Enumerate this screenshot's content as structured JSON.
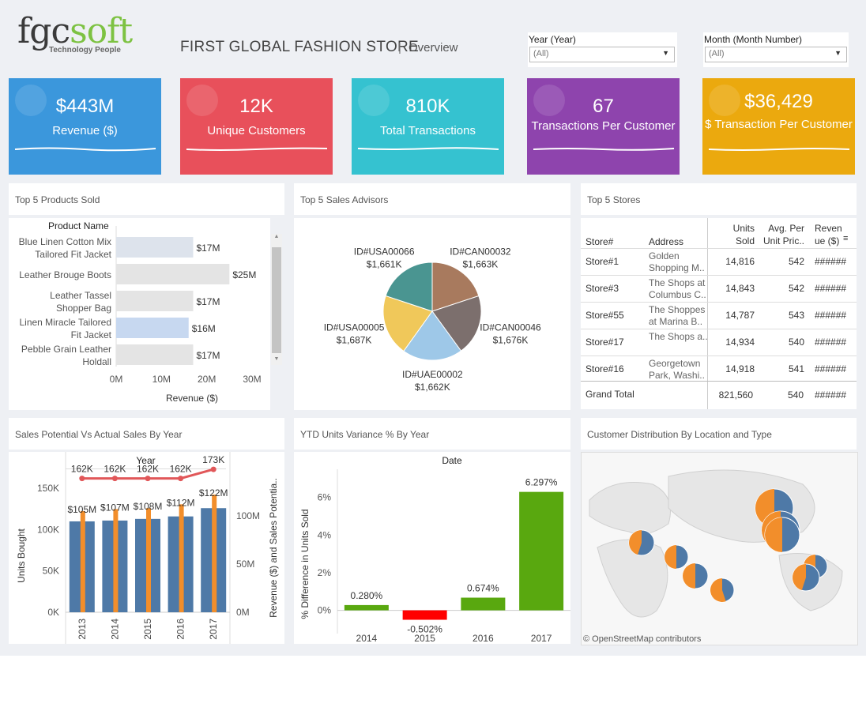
{
  "brand": {
    "name_a": "fgc",
    "name_b": "soft",
    "tagline": "Technology People"
  },
  "header": {
    "title": "FIRST GLOBAL FASHION STORE",
    "separator": "|",
    "subtitle": "Overview"
  },
  "filters": {
    "year": {
      "label": "Year (Year)",
      "value": "(All)"
    },
    "month": {
      "label": "Month (Month Number)",
      "value": "(All)"
    }
  },
  "kpis": [
    {
      "value": "$443M",
      "label": "Revenue ($)",
      "color": "#3b97dc"
    },
    {
      "value": "12K",
      "label": "Unique Customers",
      "color": "#e8505b"
    },
    {
      "value": "810K",
      "label": "Total Transactions",
      "color": "#35c2d0"
    },
    {
      "value": "67",
      "label": "Transactions Per Customer",
      "color": "#8e44ad"
    },
    {
      "value": "$36,429",
      "label": "$ Transaction Per Customer",
      "color": "#eba90e"
    }
  ],
  "panels": {
    "products": "Top 5 Products Sold",
    "advisors": "Top 5 Sales Advisors",
    "stores": "Top 5 Stores",
    "potential": "Sales Potential Vs Actual Sales By Year",
    "ytd": "YTD Units Variance % By Year",
    "customers": "Customer Distribution By Location and Type"
  },
  "map_attribution": "© OpenStreetMap contributors",
  "stores_table": {
    "headers": {
      "store": "Store#",
      "address": "Address",
      "units_a": "Units",
      "units_b": "Sold",
      "avg_a": "Avg. Per",
      "avg_b": "Unit Pric..",
      "rev_a": "Reven",
      "rev_b": "ue ($)"
    },
    "rows": [
      {
        "store": "Store#1",
        "addr1": "Golden",
        "addr2": "Shopping M..",
        "units": "14,816",
        "avg": "542",
        "rev": "######"
      },
      {
        "store": "Store#3",
        "addr1": "The Shops at",
        "addr2": "Columbus C..",
        "units": "14,843",
        "avg": "542",
        "rev": "######"
      },
      {
        "store": "Store#55",
        "addr1": "The Shoppes",
        "addr2": "at Marina B..",
        "units": "14,787",
        "avg": "543",
        "rev": "######"
      },
      {
        "store": "Store#17",
        "addr1": "The Shops a..",
        "addr2": "",
        "units": "14,934",
        "avg": "540",
        "rev": "######"
      },
      {
        "store": "Store#16",
        "addr1": "Georgetown",
        "addr2": "Park, Washi..",
        "units": "14,918",
        "avg": "541",
        "rev": "######"
      }
    ],
    "total": {
      "label": "Grand Total",
      "units": "821,560",
      "avg": "540",
      "rev": "######"
    }
  },
  "chart_data": [
    {
      "type": "bar",
      "title": "Top 5 Products Sold",
      "header": "Product Name",
      "categories": [
        [
          "Blue Linen Cotton Mix",
          "Tailored Fit Jacket"
        ],
        [
          "Leather Brouge Boots"
        ],
        [
          "Leather Tassel",
          "Shopper Bag"
        ],
        [
          "Linen Miracle Tailored",
          "Fit Jacket"
        ],
        [
          "Pebble Grain Leather",
          "Holdall"
        ]
      ],
      "values": [
        17,
        25,
        17,
        16,
        17
      ],
      "value_labels": [
        "$17M",
        "$25M",
        "$17M",
        "$16M",
        "$17M"
      ],
      "xlabel": "Revenue ($)",
      "xticks": [
        "0M",
        "10M",
        "20M",
        "30M"
      ],
      "xlim": [
        0,
        30
      ],
      "colors": [
        "#dde3ec",
        "#e4e4e4",
        "#e4e4e4",
        "#c7d8f0",
        "#e4e4e4"
      ]
    },
    {
      "type": "pie",
      "title": "Top 5 Sales Advisors",
      "slices": [
        {
          "label": "ID#CAN00032",
          "value": 1663,
          "text": "$1,663K",
          "color": "#a87a5e"
        },
        {
          "label": "ID#CAN00046",
          "value": 1676,
          "text": "$1,676K",
          "color": "#7c6f6d"
        },
        {
          "label": "ID#UAE00002",
          "value": 1662,
          "text": "$1,662K",
          "color": "#9ec8e8"
        },
        {
          "label": "ID#USA00005",
          "value": 1687,
          "text": "$1,687K",
          "color": "#f0c85a"
        },
        {
          "label": "ID#USA00066",
          "value": 1661,
          "text": "$1,661K",
          "color": "#4a9591"
        }
      ]
    },
    {
      "type": "bar",
      "title": "Sales Potential Vs Actual Sales By Year",
      "header": "Year",
      "categories": [
        "2013",
        "2014",
        "2015",
        "2016",
        "2017"
      ],
      "ylabel": "Units Bought",
      "y2label": "Revenue ($) and Sales Potentia..",
      "ylim": [
        0,
        175000
      ],
      "yticks": [
        "0K",
        "50K",
        "100K",
        "150K"
      ],
      "y2lim": [
        0,
        150
      ],
      "y2ticks": [
        "0M",
        "50M",
        "100M"
      ],
      "series": [
        {
          "name": "Units Bought",
          "values": [
            110000,
            111000,
            113000,
            116000,
            126000
          ],
          "color": "#4e79a7"
        },
        {
          "name": "Revenue ($)",
          "values": [
            105,
            107,
            108,
            112,
            122
          ],
          "labels": [
            "$105M",
            "$107M",
            "$108M",
            "$112M",
            "$122M"
          ],
          "color": "#f28e2b"
        },
        {
          "name": "Sales Potential",
          "values": [
            162000,
            162000,
            162000,
            162000,
            173000
          ],
          "labels": [
            "162K",
            "162K",
            "162K",
            "162K",
            "173K"
          ],
          "color": "#e15759"
        }
      ]
    },
    {
      "type": "bar",
      "title": "YTD Units Variance % By Year",
      "header": "Date",
      "categories": [
        "2014",
        "2015",
        "2016",
        "2017"
      ],
      "values": [
        0.28,
        -0.502,
        0.674,
        6.297
      ],
      "value_labels": [
        "0.280%",
        "-0.502%",
        "0.674%",
        "6.297%"
      ],
      "ylabel": "% Difference in Units Sold",
      "ylim": [
        -0.9,
        7.5
      ],
      "yticks": [
        0,
        2,
        4,
        6
      ],
      "positive_color": "#59a80f",
      "negative_color": "#ff0000"
    }
  ]
}
